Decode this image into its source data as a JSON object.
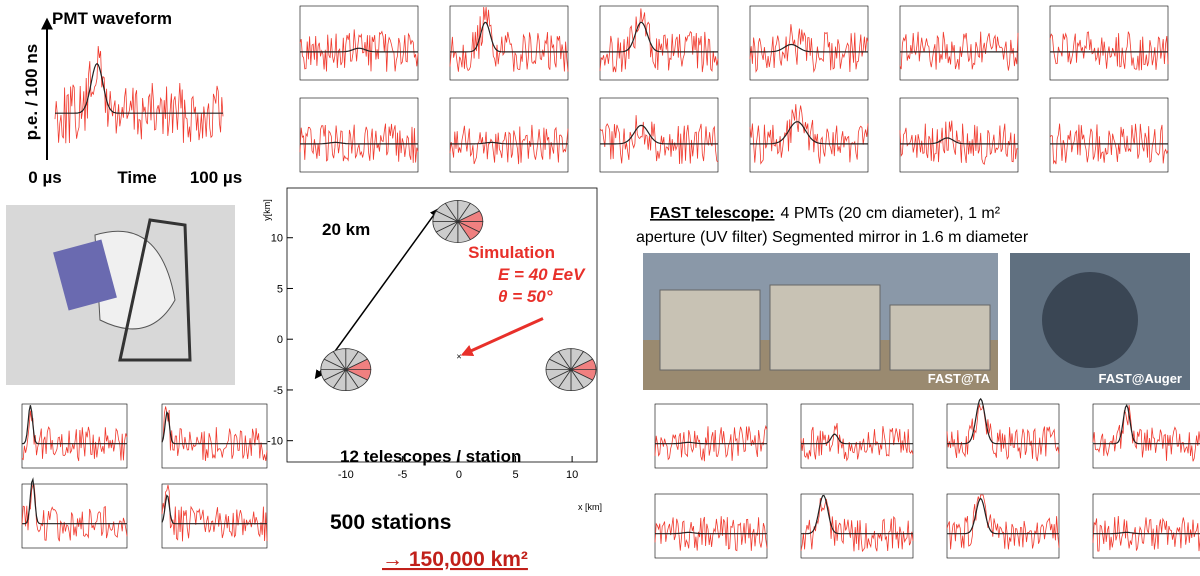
{
  "waveform": {
    "title": "PMT waveform",
    "ylabel": "p.e. / 100 ns",
    "x_start": "0 µs",
    "x_label": "Time",
    "x_end": "100 µs"
  },
  "map": {
    "xlabel": "x [km]",
    "ylabel": "y[km]",
    "xlim": [
      -15.2,
      12.2
    ],
    "ylim": [
      -12.1,
      14.9
    ],
    "xticks": [
      -10,
      -5,
      0,
      5,
      10
    ],
    "yticks": [
      -10,
      -5,
      0,
      5,
      10
    ],
    "stations": [
      {
        "x": -0.1,
        "y": 11.6
      },
      {
        "x": -10,
        "y": -3
      },
      {
        "x": 9.9,
        "y": -3
      }
    ],
    "event": {
      "x": 0,
      "y": -1.7
    },
    "distance_label": "20 km",
    "simulation": [
      "Simulation",
      "E = 40 EeV",
      "θ = 50°"
    ],
    "footer": "12 telescopes / station"
  },
  "summary": {
    "stations": "500 stations",
    "area": "→ 150,000 km²"
  },
  "fast": {
    "heading": "FAST telescope:",
    "line1": "4 PMTs (20 cm diameter), 1 m²",
    "line2": "aperture (UV filter) Segmented mirror in 1.6 m diameter",
    "photo_ta": "FAST@TA",
    "photo_auger": "FAST@Auger"
  }
}
